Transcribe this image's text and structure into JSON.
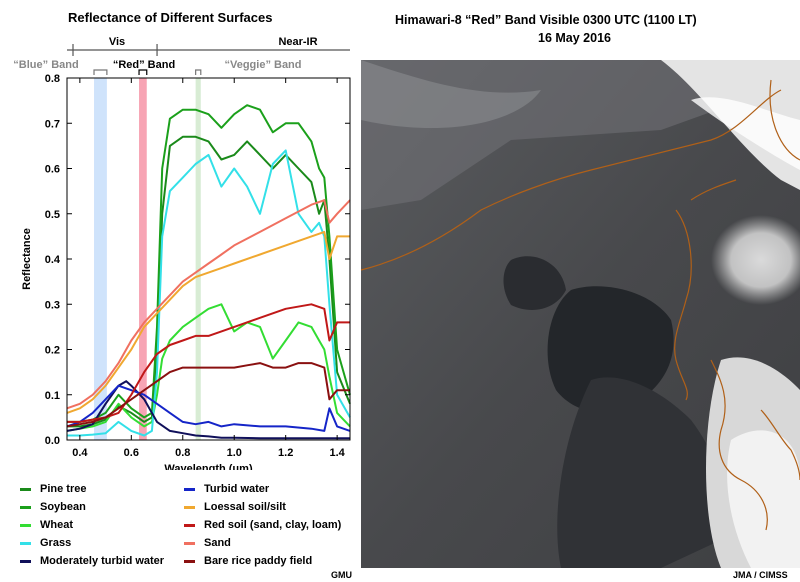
{
  "chart_title": "Reflectance of Different Surfaces",
  "image_title": "Himawari-8 “Red” Band Visible  0300 UTC  (1100 LT)",
  "image_date": "16 May 2016",
  "region_labels": {
    "vis": "Vis",
    "nir": "Near-IR"
  },
  "band_labels": {
    "blue": "“Blue” Band",
    "red": "“Red” Band",
    "veggie": "“Veggie” Band"
  },
  "credits": {
    "left": "GMU",
    "right": "JMA / CIMSS"
  },
  "chart_data": {
    "type": "line",
    "title": "Reflectance of Different Surfaces",
    "xlabel": "Wavelength (μm)",
    "ylabel": "Reflectance",
    "xlim": [
      0.35,
      1.45
    ],
    "ylim": [
      0,
      0.8
    ],
    "xticks": [
      0.4,
      0.6,
      0.8,
      1.0,
      1.2,
      1.4
    ],
    "xtick_labels": [
      "0.4",
      "0.6",
      "0.8",
      "1.0",
      "1.2",
      "1.4"
    ],
    "yticks": [
      0,
      0.1,
      0.2,
      0.3,
      0.4,
      0.5,
      0.6,
      0.7,
      0.8
    ],
    "ytick_labels": [
      "0.0",
      "0.1",
      "0.2",
      "0.3",
      "0.4",
      "0.5",
      "0.6",
      "0.7",
      "0.8"
    ],
    "bands": [
      {
        "name": "“Blue” Band",
        "x": [
          0.455,
          0.505
        ],
        "color": "#cfe3fb"
      },
      {
        "name": "“Red” Band",
        "x": [
          0.63,
          0.66
        ],
        "color": "#f7a4b4"
      },
      {
        "name": "“Veggie” Band",
        "x": [
          0.85,
          0.87
        ],
        "color": "#d8ecd4"
      }
    ],
    "series": [
      {
        "name": "Pine tree",
        "color": "#1a8a1a",
        "x": [
          0.35,
          0.4,
          0.45,
          0.5,
          0.55,
          0.6,
          0.65,
          0.68,
          0.7,
          0.72,
          0.75,
          0.8,
          0.85,
          0.9,
          0.95,
          1.0,
          1.05,
          1.1,
          1.15,
          1.2,
          1.25,
          1.3,
          1.33,
          1.35,
          1.37,
          1.4,
          1.45
        ],
        "y": [
          0.03,
          0.03,
          0.035,
          0.045,
          0.075,
          0.06,
          0.04,
          0.05,
          0.2,
          0.5,
          0.65,
          0.67,
          0.67,
          0.66,
          0.62,
          0.63,
          0.66,
          0.63,
          0.6,
          0.63,
          0.6,
          0.57,
          0.5,
          0.53,
          0.4,
          0.15,
          0.08
        ]
      },
      {
        "name": "Soybean",
        "color": "#1ba01b",
        "x": [
          0.35,
          0.4,
          0.45,
          0.5,
          0.55,
          0.6,
          0.65,
          0.68,
          0.7,
          0.72,
          0.75,
          0.8,
          0.85,
          0.9,
          0.95,
          1.0,
          1.05,
          1.1,
          1.15,
          1.2,
          1.25,
          1.3,
          1.33,
          1.35,
          1.37,
          1.4,
          1.45
        ],
        "y": [
          0.04,
          0.04,
          0.045,
          0.06,
          0.1,
          0.07,
          0.05,
          0.06,
          0.25,
          0.6,
          0.71,
          0.73,
          0.73,
          0.72,
          0.69,
          0.72,
          0.74,
          0.73,
          0.68,
          0.7,
          0.7,
          0.66,
          0.6,
          0.58,
          0.45,
          0.2,
          0.1
        ]
      },
      {
        "name": "Wheat",
        "color": "#33dd33",
        "x": [
          0.35,
          0.4,
          0.45,
          0.5,
          0.55,
          0.6,
          0.65,
          0.68,
          0.7,
          0.72,
          0.75,
          0.8,
          0.85,
          0.9,
          0.95,
          1.0,
          1.05,
          1.1,
          1.15,
          1.2,
          1.25,
          1.3,
          1.33,
          1.35,
          1.37,
          1.4,
          1.45
        ],
        "y": [
          0.02,
          0.025,
          0.03,
          0.04,
          0.08,
          0.05,
          0.03,
          0.04,
          0.1,
          0.18,
          0.22,
          0.25,
          0.27,
          0.29,
          0.3,
          0.24,
          0.26,
          0.25,
          0.18,
          0.22,
          0.26,
          0.25,
          0.22,
          0.2,
          0.14,
          0.06,
          0.03
        ]
      },
      {
        "name": "Grass",
        "color": "#33e0e8",
        "x": [
          0.35,
          0.4,
          0.45,
          0.5,
          0.55,
          0.6,
          0.65,
          0.68,
          0.7,
          0.72,
          0.75,
          0.8,
          0.85,
          0.9,
          0.95,
          1.0,
          1.05,
          1.1,
          1.15,
          1.2,
          1.25,
          1.3,
          1.33,
          1.35,
          1.37,
          1.4,
          1.45
        ],
        "y": [
          0.01,
          0.01,
          0.012,
          0.015,
          0.04,
          0.02,
          0.01,
          0.02,
          0.15,
          0.45,
          0.55,
          0.58,
          0.61,
          0.63,
          0.56,
          0.6,
          0.56,
          0.5,
          0.61,
          0.64,
          0.5,
          0.46,
          0.48,
          0.45,
          0.3,
          0.1,
          0.05
        ]
      },
      {
        "name": "Moderately turbid water",
        "color": "#10105a",
        "x": [
          0.35,
          0.4,
          0.45,
          0.5,
          0.55,
          0.58,
          0.6,
          0.65,
          0.7,
          0.75,
          0.8,
          0.85,
          0.9,
          0.95,
          1.0,
          1.1,
          1.2,
          1.3,
          1.35,
          1.4,
          1.45
        ],
        "y": [
          0.02,
          0.025,
          0.035,
          0.08,
          0.12,
          0.13,
          0.12,
          0.09,
          0.04,
          0.02,
          0.015,
          0.01,
          0.008,
          0.005,
          0.005,
          0.004,
          0.004,
          0.004,
          0.004,
          0.004,
          0.004
        ]
      },
      {
        "name": "Turbid water",
        "color": "#1525c8",
        "x": [
          0.35,
          0.4,
          0.45,
          0.5,
          0.55,
          0.6,
          0.65,
          0.7,
          0.75,
          0.8,
          0.85,
          0.9,
          0.95,
          1.0,
          1.1,
          1.2,
          1.3,
          1.35,
          1.37,
          1.4,
          1.45
        ],
        "y": [
          0.03,
          0.04,
          0.06,
          0.09,
          0.12,
          0.11,
          0.1,
          0.08,
          0.06,
          0.04,
          0.035,
          0.04,
          0.03,
          0.035,
          0.03,
          0.03,
          0.025,
          0.02,
          0.07,
          0.03,
          0.02
        ]
      },
      {
        "name": "Loessal soil/silt",
        "color": "#f0a830",
        "x": [
          0.35,
          0.4,
          0.45,
          0.5,
          0.55,
          0.6,
          0.65,
          0.7,
          0.75,
          0.8,
          0.85,
          0.9,
          0.95,
          1.0,
          1.1,
          1.2,
          1.3,
          1.35,
          1.37,
          1.4,
          1.45
        ],
        "y": [
          0.06,
          0.07,
          0.09,
          0.12,
          0.16,
          0.2,
          0.25,
          0.28,
          0.31,
          0.34,
          0.36,
          0.37,
          0.38,
          0.39,
          0.41,
          0.43,
          0.45,
          0.46,
          0.4,
          0.45,
          0.45
        ]
      },
      {
        "name": "Red soil (sand, clay, loam)",
        "color": "#c01818",
        "x": [
          0.35,
          0.4,
          0.45,
          0.5,
          0.55,
          0.6,
          0.65,
          0.7,
          0.75,
          0.8,
          0.85,
          0.9,
          0.95,
          1.0,
          1.1,
          1.2,
          1.3,
          1.35,
          1.37,
          1.4,
          1.45
        ],
        "y": [
          0.04,
          0.04,
          0.045,
          0.05,
          0.06,
          0.1,
          0.15,
          0.19,
          0.21,
          0.22,
          0.23,
          0.23,
          0.24,
          0.25,
          0.27,
          0.29,
          0.3,
          0.29,
          0.22,
          0.26,
          0.26
        ]
      },
      {
        "name": "Sand",
        "color": "#f07060",
        "x": [
          0.35,
          0.4,
          0.45,
          0.5,
          0.55,
          0.6,
          0.65,
          0.7,
          0.75,
          0.8,
          0.85,
          0.9,
          0.95,
          1.0,
          1.1,
          1.2,
          1.3,
          1.35,
          1.37,
          1.4,
          1.45
        ],
        "y": [
          0.07,
          0.08,
          0.1,
          0.13,
          0.17,
          0.22,
          0.26,
          0.29,
          0.32,
          0.35,
          0.37,
          0.39,
          0.41,
          0.43,
          0.46,
          0.49,
          0.52,
          0.53,
          0.48,
          0.5,
          0.53
        ]
      },
      {
        "name": "Bare rice paddy field",
        "color": "#8a1010",
        "x": [
          0.35,
          0.4,
          0.45,
          0.5,
          0.55,
          0.6,
          0.65,
          0.7,
          0.75,
          0.8,
          0.85,
          0.9,
          0.95,
          1.0,
          1.05,
          1.1,
          1.15,
          1.2,
          1.25,
          1.3,
          1.35,
          1.37,
          1.4,
          1.45
        ],
        "y": [
          0.03,
          0.035,
          0.04,
          0.05,
          0.07,
          0.09,
          0.11,
          0.13,
          0.15,
          0.16,
          0.16,
          0.16,
          0.16,
          0.16,
          0.165,
          0.17,
          0.16,
          0.16,
          0.17,
          0.17,
          0.16,
          0.09,
          0.11,
          0.11
        ]
      }
    ]
  },
  "legend": [
    {
      "label": "Pine tree",
      "color": "#1a8a1a"
    },
    {
      "label": "Soybean",
      "color": "#1ba01b"
    },
    {
      "label": "Wheat",
      "color": "#33dd33"
    },
    {
      "label": "Grass",
      "color": "#33e0e8"
    },
    {
      "label": "Moderately turbid water",
      "color": "#10105a"
    },
    {
      "label": "Turbid water",
      "color": "#1525c8"
    },
    {
      "label": "Loessal soil/silt",
      "color": "#f0a830"
    },
    {
      "label": "Red soil (sand, clay, loam)",
      "color": "#c01818"
    },
    {
      "label": "Sand",
      "color": "#f07060"
    },
    {
      "label": "Bare rice paddy field",
      "color": "#8a1010"
    }
  ]
}
